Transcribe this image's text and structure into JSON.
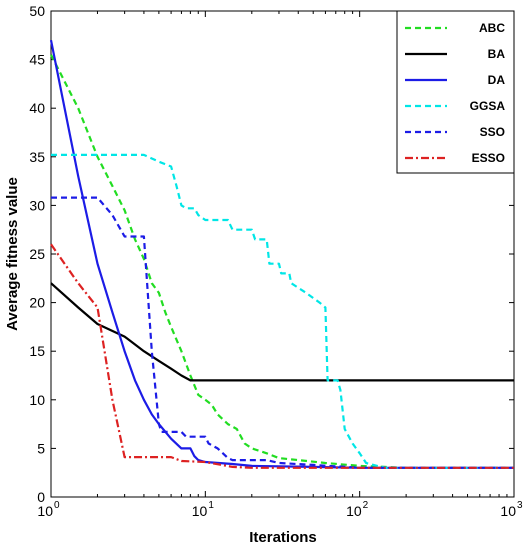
{
  "chart_data": {
    "type": "line",
    "xlabel": "Iterations",
    "ylabel": "Average fitness value",
    "xscale": "log",
    "xlim": [
      1,
      1000
    ],
    "ylim": [
      0,
      50
    ],
    "grid": false,
    "legend_position": "top-right",
    "x_ticks": [
      {
        "value": 1,
        "base": "10",
        "exp": "0"
      },
      {
        "value": 10,
        "base": "10",
        "exp": "1"
      },
      {
        "value": 100,
        "base": "10",
        "exp": "2"
      },
      {
        "value": 1000,
        "base": "10",
        "exp": "3"
      }
    ],
    "y_ticks": [
      0,
      5,
      10,
      15,
      20,
      25,
      30,
      35,
      40,
      45,
      50
    ],
    "series": [
      {
        "name": "ABC",
        "color": "#22dd22",
        "dash": "dashed",
        "points": [
          [
            1,
            45.5
          ],
          [
            1.5,
            40
          ],
          [
            2,
            35
          ],
          [
            2.5,
            32
          ],
          [
            3,
            29.5
          ],
          [
            3.5,
            26.5
          ],
          [
            4,
            24.5
          ],
          [
            4.5,
            22
          ],
          [
            5,
            21
          ],
          [
            5.5,
            19
          ],
          [
            6,
            17.5
          ],
          [
            7,
            15
          ],
          [
            8,
            12.5
          ],
          [
            9,
            10.5
          ],
          [
            10,
            10
          ],
          [
            11,
            9.5
          ],
          [
            12,
            8.5
          ],
          [
            14,
            7.5
          ],
          [
            16,
            7
          ],
          [
            18,
            5.5
          ],
          [
            20,
            5
          ],
          [
            25,
            4.5
          ],
          [
            30,
            4
          ],
          [
            40,
            3.8
          ],
          [
            60,
            3.5
          ],
          [
            100,
            3.2
          ],
          [
            200,
            3
          ],
          [
            1000,
            3
          ]
        ]
      },
      {
        "name": "BA",
        "color": "#000000",
        "dash": "solid",
        "points": [
          [
            1,
            22
          ],
          [
            1.5,
            19.5
          ],
          [
            2,
            17.8
          ],
          [
            3,
            16.5
          ],
          [
            4,
            15
          ],
          [
            5,
            14
          ],
          [
            6,
            13.2
          ],
          [
            7,
            12.5
          ],
          [
            8,
            12
          ],
          [
            1000,
            12
          ]
        ]
      },
      {
        "name": "DA",
        "color": "#1c1ce6",
        "dash": "solid",
        "points": [
          [
            1,
            47
          ],
          [
            1.5,
            33
          ],
          [
            2,
            24
          ],
          [
            2.5,
            19
          ],
          [
            3,
            15
          ],
          [
            3.5,
            12
          ],
          [
            4,
            10
          ],
          [
            4.5,
            8.5
          ],
          [
            5,
            7.5
          ],
          [
            6,
            6
          ],
          [
            7,
            5
          ],
          [
            8,
            5
          ],
          [
            8.5,
            4.2
          ],
          [
            9,
            3.8
          ],
          [
            10,
            3.6
          ],
          [
            15,
            3.4
          ],
          [
            20,
            3.2
          ],
          [
            50,
            3.1
          ],
          [
            100,
            3
          ],
          [
            1000,
            3
          ]
        ]
      },
      {
        "name": "GGSA",
        "color": "#00e6e6",
        "dash": "dashed",
        "points": [
          [
            1,
            35.2
          ],
          [
            4,
            35.2
          ],
          [
            5,
            34.5
          ],
          [
            6,
            34
          ],
          [
            6.5,
            32
          ],
          [
            7,
            30
          ],
          [
            7.5,
            29.7
          ],
          [
            8.5,
            29.7
          ],
          [
            9,
            29
          ],
          [
            10,
            28.5
          ],
          [
            14,
            28.5
          ],
          [
            15,
            27.5
          ],
          [
            20,
            27.5
          ],
          [
            21,
            26.5
          ],
          [
            25,
            26.5
          ],
          [
            26,
            24
          ],
          [
            30,
            24
          ],
          [
            31,
            23
          ],
          [
            35,
            23
          ],
          [
            36,
            22
          ],
          [
            45,
            21
          ],
          [
            55,
            20
          ],
          [
            60,
            19.5
          ],
          [
            62,
            12
          ],
          [
            72,
            12
          ],
          [
            75,
            11
          ],
          [
            80,
            7
          ],
          [
            90,
            5.5
          ],
          [
            100,
            4.5
          ],
          [
            110,
            3.5
          ],
          [
            130,
            3.2
          ],
          [
            150,
            3
          ],
          [
            1000,
            3
          ]
        ]
      },
      {
        "name": "SSO",
        "color": "#1c1ce6",
        "dash": "dashed",
        "points": [
          [
            1,
            30.8
          ],
          [
            2,
            30.8
          ],
          [
            2.5,
            29
          ],
          [
            3,
            26.8
          ],
          [
            4,
            26.8
          ],
          [
            4.5,
            15
          ],
          [
            5,
            7.5
          ],
          [
            5.2,
            6.7
          ],
          [
            7,
            6.7
          ],
          [
            7.5,
            6.2
          ],
          [
            10,
            6.2
          ],
          [
            10.5,
            5.5
          ],
          [
            12,
            5
          ],
          [
            13,
            4.5
          ],
          [
            14,
            4
          ],
          [
            15,
            3.8
          ],
          [
            20,
            3.8
          ],
          [
            25,
            3.8
          ],
          [
            30,
            3.5
          ],
          [
            50,
            3.3
          ],
          [
            100,
            3
          ],
          [
            1000,
            3
          ]
        ]
      },
      {
        "name": "ESSO",
        "color": "#dd2222",
        "dash": "dashdot",
        "points": [
          [
            1,
            26
          ],
          [
            1.5,
            22
          ],
          [
            2,
            19.5
          ],
          [
            2.5,
            10
          ],
          [
            3,
            4.1
          ],
          [
            4,
            4.1
          ],
          [
            6,
            4.1
          ],
          [
            7,
            3.7
          ],
          [
            10,
            3.6
          ],
          [
            15,
            3.1
          ],
          [
            20,
            3
          ],
          [
            100,
            3
          ],
          [
            1000,
            3
          ]
        ]
      }
    ]
  }
}
